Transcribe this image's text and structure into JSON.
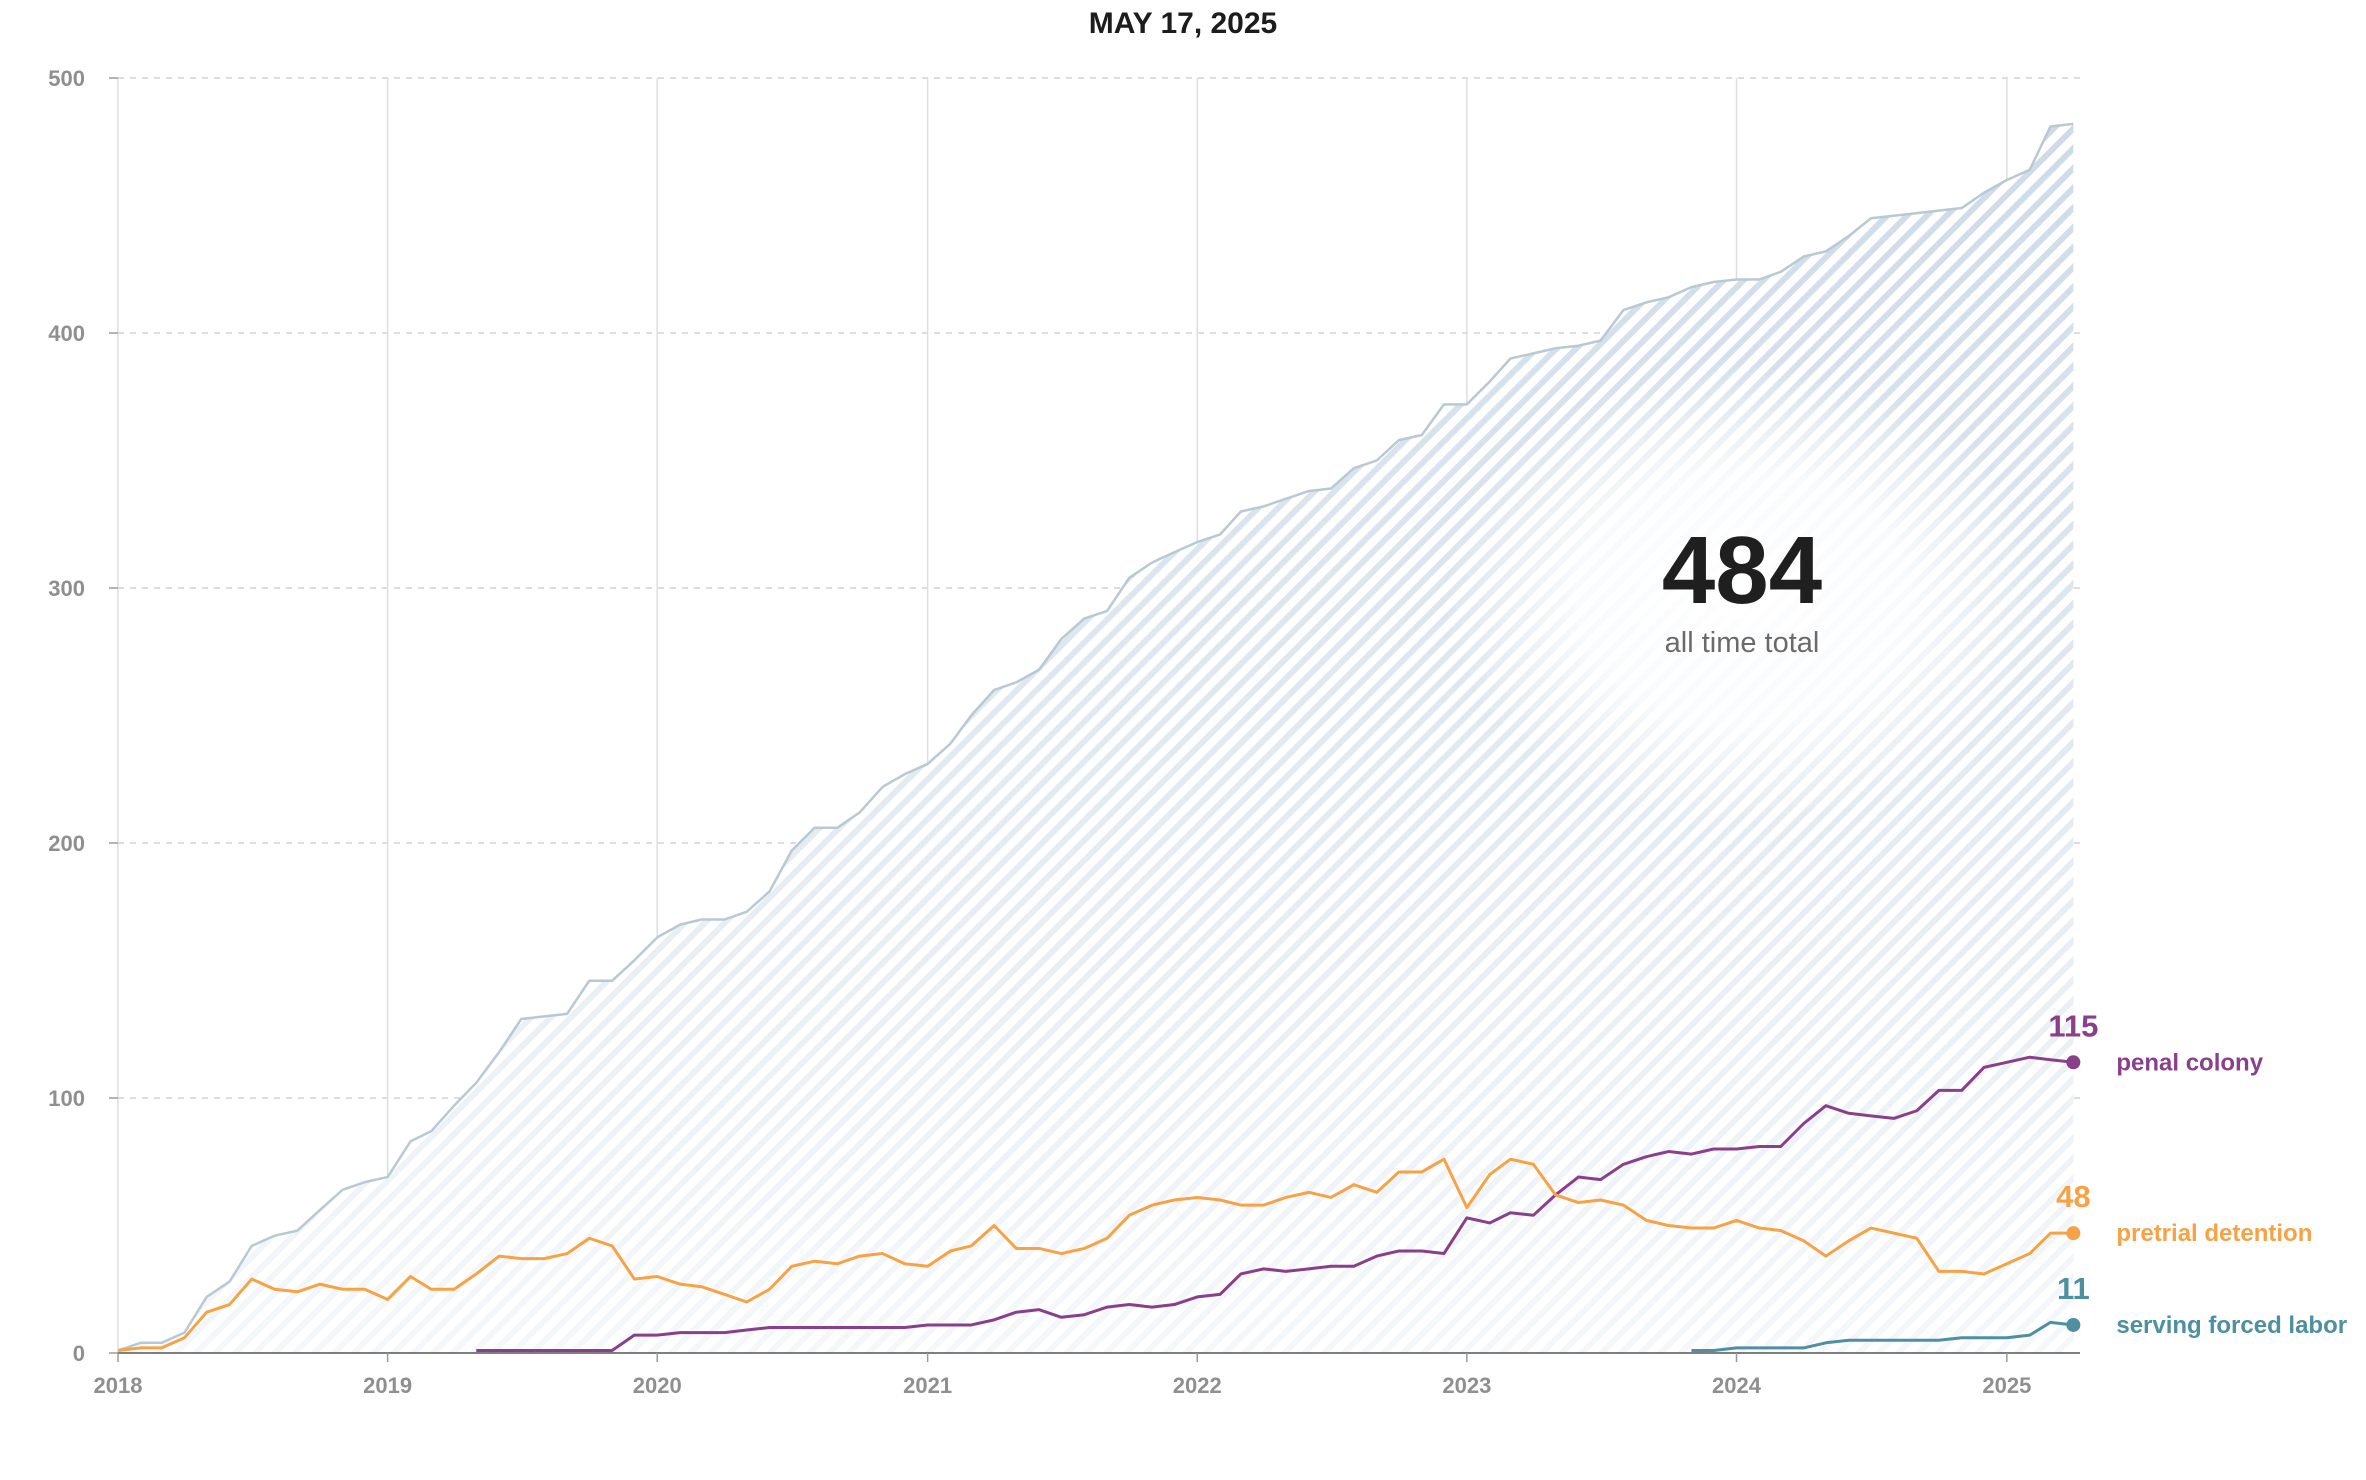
{
  "chart_data": {
    "type": "area",
    "title": "MAY 17, 2025",
    "ylim": [
      0,
      500
    ],
    "yticks": [
      "0",
      "100",
      "200",
      "300",
      "400",
      "500"
    ],
    "xlim": [
      "2018-01-01",
      "2025-04-10"
    ],
    "xticks": [
      "2018",
      "2019",
      "2020",
      "2021",
      "2022",
      "2023",
      "2024",
      "2025"
    ],
    "grid": "dashed horizontal, solid vertical at years",
    "total": {
      "value_label": "484",
      "caption": "all time total",
      "color": "#b9c9d3",
      "fill": "hatched light blue",
      "x": [
        "2018-01",
        "2018-02",
        "2018-03",
        "2018-04",
        "2018-05",
        "2018-06",
        "2018-07",
        "2018-08",
        "2018-09",
        "2018-10",
        "2018-11",
        "2018-12",
        "2019-01",
        "2019-02",
        "2019-03",
        "2019-04",
        "2019-05",
        "2019-06",
        "2019-07",
        "2019-08",
        "2019-09",
        "2019-10",
        "2019-11",
        "2019-12",
        "2020-01",
        "2020-02",
        "2020-03",
        "2020-04",
        "2020-05",
        "2020-06",
        "2020-07",
        "2020-08",
        "2020-09",
        "2020-10",
        "2020-11",
        "2020-12",
        "2021-01",
        "2021-02",
        "2021-03",
        "2021-04",
        "2021-05",
        "2021-06",
        "2021-07",
        "2021-08",
        "2021-09",
        "2021-10",
        "2021-11",
        "2021-12",
        "2022-01",
        "2022-02",
        "2022-03",
        "2022-04",
        "2022-05",
        "2022-06",
        "2022-07",
        "2022-08",
        "2022-09",
        "2022-10",
        "2022-11",
        "2022-12",
        "2023-01",
        "2023-02",
        "2023-03",
        "2023-04",
        "2023-05",
        "2023-06",
        "2023-07",
        "2023-08",
        "2023-09",
        "2023-10",
        "2023-11",
        "2023-12",
        "2024-01",
        "2024-02",
        "2024-03",
        "2024-04",
        "2024-05",
        "2024-06",
        "2024-07",
        "2024-08",
        "2024-09",
        "2024-10",
        "2024-11",
        "2024-12",
        "2025-01",
        "2025-02",
        "2025-03",
        "2025-04"
      ],
      "values": [
        1,
        4,
        4,
        8,
        22,
        28,
        42,
        46,
        48,
        56,
        64,
        67,
        69,
        83,
        87,
        97,
        106,
        118,
        131,
        132,
        133,
        146,
        146,
        154,
        163,
        168,
        170,
        170,
        173,
        181,
        197,
        206,
        206,
        212,
        222,
        227,
        231,
        239,
        250,
        260,
        263,
        268,
        280,
        288,
        291,
        304,
        310,
        314,
        318,
        321,
        330,
        332,
        335,
        338,
        339,
        347,
        350,
        358,
        360,
        372,
        372,
        381,
        390,
        392,
        394,
        395,
        397,
        409,
        412,
        414,
        418,
        420,
        421,
        421,
        424,
        430,
        432,
        438,
        445,
        446,
        447,
        448,
        449,
        455,
        460,
        464,
        481,
        482
      ]
    },
    "series": [
      {
        "name": "penal colony",
        "end_label": "115",
        "color": "#8a3f8a",
        "x": [
          "2019-05",
          "2019-06",
          "2019-07",
          "2019-08",
          "2019-09",
          "2019-10",
          "2019-11",
          "2019-12",
          "2020-01",
          "2020-02",
          "2020-03",
          "2020-04",
          "2020-05",
          "2020-06",
          "2020-07",
          "2020-08",
          "2020-09",
          "2020-10",
          "2020-11",
          "2020-12",
          "2021-01",
          "2021-02",
          "2021-03",
          "2021-04",
          "2021-05",
          "2021-06",
          "2021-07",
          "2021-08",
          "2021-09",
          "2021-10",
          "2021-11",
          "2021-12",
          "2022-01",
          "2022-02",
          "2022-03",
          "2022-04",
          "2022-05",
          "2022-06",
          "2022-07",
          "2022-08",
          "2022-09",
          "2022-10",
          "2022-11",
          "2022-12",
          "2023-01",
          "2023-02",
          "2023-03",
          "2023-04",
          "2023-05",
          "2023-06",
          "2023-07",
          "2023-08",
          "2023-09",
          "2023-10",
          "2023-11",
          "2023-12",
          "2024-01",
          "2024-02",
          "2024-03",
          "2024-04",
          "2024-05",
          "2024-06",
          "2024-07",
          "2024-08",
          "2024-09",
          "2024-10",
          "2024-11",
          "2024-12",
          "2025-01",
          "2025-02",
          "2025-03",
          "2025-04"
        ],
        "values": [
          1,
          1,
          1,
          1,
          1,
          1,
          1,
          7,
          7,
          8,
          8,
          8,
          9,
          10,
          10,
          10,
          10,
          10,
          10,
          10,
          11,
          11,
          11,
          13,
          16,
          17,
          14,
          15,
          18,
          19,
          18,
          19,
          22,
          23,
          31,
          33,
          32,
          33,
          34,
          34,
          38,
          40,
          40,
          39,
          53,
          51,
          55,
          54,
          62,
          69,
          68,
          74,
          77,
          79,
          78,
          80,
          80,
          81,
          81,
          90,
          97,
          94,
          93,
          92,
          95,
          103,
          103,
          112,
          114,
          116,
          115,
          114
        ]
      },
      {
        "name": "pretrial detention",
        "end_label": "48",
        "color": "#f7a245",
        "x": [
          "2018-01",
          "2018-02",
          "2018-03",
          "2018-04",
          "2018-05",
          "2018-06",
          "2018-07",
          "2018-08",
          "2018-09",
          "2018-10",
          "2018-11",
          "2018-12",
          "2019-01",
          "2019-02",
          "2019-03",
          "2019-04",
          "2019-05",
          "2019-06",
          "2019-07",
          "2019-08",
          "2019-09",
          "2019-10",
          "2019-11",
          "2019-12",
          "2020-01",
          "2020-02",
          "2020-03",
          "2020-04",
          "2020-05",
          "2020-06",
          "2020-07",
          "2020-08",
          "2020-09",
          "2020-10",
          "2020-11",
          "2020-12",
          "2021-01",
          "2021-02",
          "2021-03",
          "2021-04",
          "2021-05",
          "2021-06",
          "2021-07",
          "2021-08",
          "2021-09",
          "2021-10",
          "2021-11",
          "2021-12",
          "2022-01",
          "2022-02",
          "2022-03",
          "2022-04",
          "2022-05",
          "2022-06",
          "2022-07",
          "2022-08",
          "2022-09",
          "2022-10",
          "2022-11",
          "2022-12",
          "2023-01",
          "2023-02",
          "2023-03",
          "2023-04",
          "2023-05",
          "2023-06",
          "2023-07",
          "2023-08",
          "2023-09",
          "2023-10",
          "2023-11",
          "2023-12",
          "2024-01",
          "2024-02",
          "2024-03",
          "2024-04",
          "2024-05",
          "2024-06",
          "2024-07",
          "2024-08",
          "2024-09",
          "2024-10",
          "2024-11",
          "2024-12",
          "2025-01",
          "2025-02",
          "2025-03",
          "2025-04"
        ],
        "values": [
          1,
          2,
          2,
          6,
          16,
          19,
          29,
          25,
          24,
          27,
          25,
          25,
          21,
          30,
          25,
          25,
          31,
          38,
          37,
          37,
          39,
          45,
          42,
          29,
          30,
          27,
          26,
          23,
          20,
          25,
          34,
          36,
          35,
          38,
          39,
          35,
          34,
          40,
          42,
          50,
          41,
          41,
          39,
          41,
          45,
          54,
          58,
          60,
          61,
          60,
          58,
          58,
          61,
          63,
          61,
          66,
          63,
          71,
          71,
          76,
          57,
          70,
          76,
          74,
          62,
          59,
          60,
          58,
          52,
          50,
          49,
          49,
          52,
          49,
          48,
          44,
          38,
          44,
          49,
          47,
          45,
          32,
          32,
          31,
          35,
          39,
          47,
          47
        ]
      },
      {
        "name": "serving forced labor",
        "end_label": "11",
        "color": "#4e8fa2",
        "x": [
          "2023-11",
          "2023-12",
          "2024-01",
          "2024-02",
          "2024-03",
          "2024-04",
          "2024-05",
          "2024-06",
          "2024-07",
          "2024-08",
          "2024-09",
          "2024-10",
          "2024-11",
          "2024-12",
          "2025-01",
          "2025-02",
          "2025-03",
          "2025-04"
        ],
        "values": [
          1,
          1,
          2,
          2,
          2,
          2,
          4,
          5,
          5,
          5,
          5,
          5,
          6,
          6,
          6,
          7,
          12,
          11
        ]
      }
    ]
  }
}
